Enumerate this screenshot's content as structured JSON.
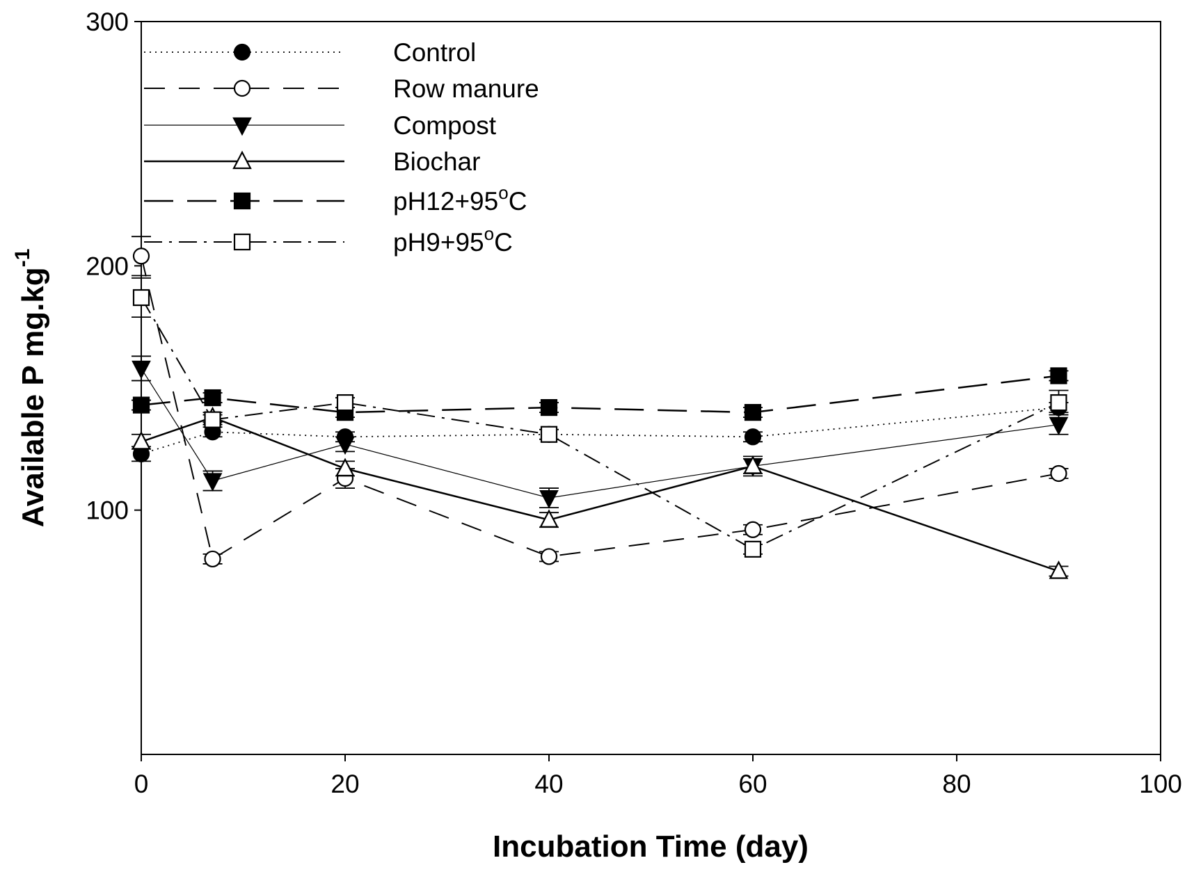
{
  "chart_data": {
    "type": "line",
    "title": "",
    "xlabel": "Incubation Time (day)",
    "ylabel": "Available P mg.kg",
    "ylabel_superscript": "-1",
    "xlim": [
      0,
      100
    ],
    "ylim": [
      0,
      300
    ],
    "x_ticks": [
      0,
      20,
      40,
      60,
      80,
      100
    ],
    "y_ticks": [
      100,
      200,
      300
    ],
    "x_tick_labels": [
      "0",
      "20",
      "40",
      "60",
      "80",
      "100"
    ],
    "y_tick_labels": [
      "100",
      "200",
      "300"
    ],
    "grid": false,
    "legend_position": "top-left",
    "x": [
      0,
      7,
      20,
      40,
      60,
      90
    ],
    "series": [
      {
        "name": "Control",
        "marker": "circle-filled",
        "dash": "dotted",
        "values": [
          123,
          132,
          130,
          131,
          130,
          142
        ],
        "errors": [
          3,
          2,
          2,
          2,
          2,
          2
        ]
      },
      {
        "name": "Row manure",
        "marker": "circle-open",
        "dash": "dashed",
        "values": [
          204,
          80,
          113,
          81,
          92,
          115
        ],
        "errors": [
          8,
          2,
          4,
          2,
          2,
          2
        ]
      },
      {
        "name": "Compost",
        "marker": "triangle-down-filled",
        "dash": "thin-solid",
        "values": [
          158,
          112,
          127,
          105,
          118,
          135
        ],
        "errors": [
          5,
          4,
          3,
          4,
          3,
          4
        ]
      },
      {
        "name": "Biochar",
        "marker": "triangle-up-open",
        "dash": "solid",
        "values": [
          128,
          138,
          117,
          96,
          118,
          75
        ],
        "errors": [
          3,
          2,
          3,
          3,
          4,
          2
        ]
      },
      {
        "name": "pH12+95",
        "name_suffix": "oC",
        "marker": "square-filled",
        "dash": "long-dashed",
        "values": [
          143,
          146,
          140,
          142,
          140,
          155
        ],
        "errors": [
          2,
          2,
          2,
          2,
          2,
          2
        ]
      },
      {
        "name": "pH9+95",
        "name_suffix": "oC",
        "marker": "square-open",
        "dash": "dash-dot",
        "values": [
          187,
          137,
          144,
          131,
          84,
          144
        ],
        "errors": [
          8,
          2,
          2,
          2,
          2,
          5
        ]
      }
    ]
  },
  "legend": {
    "items": [
      {
        "label": "Control"
      },
      {
        "label": "Row manure"
      },
      {
        "label": "Compost"
      },
      {
        "label": "Biochar"
      },
      {
        "label": "pH12+95",
        "sup": "o",
        "unit": "C"
      },
      {
        "label": "pH9+95",
        "sup": "o",
        "unit": "C"
      }
    ]
  },
  "colors": {
    "ink": "#000000",
    "background": "#ffffff"
  }
}
